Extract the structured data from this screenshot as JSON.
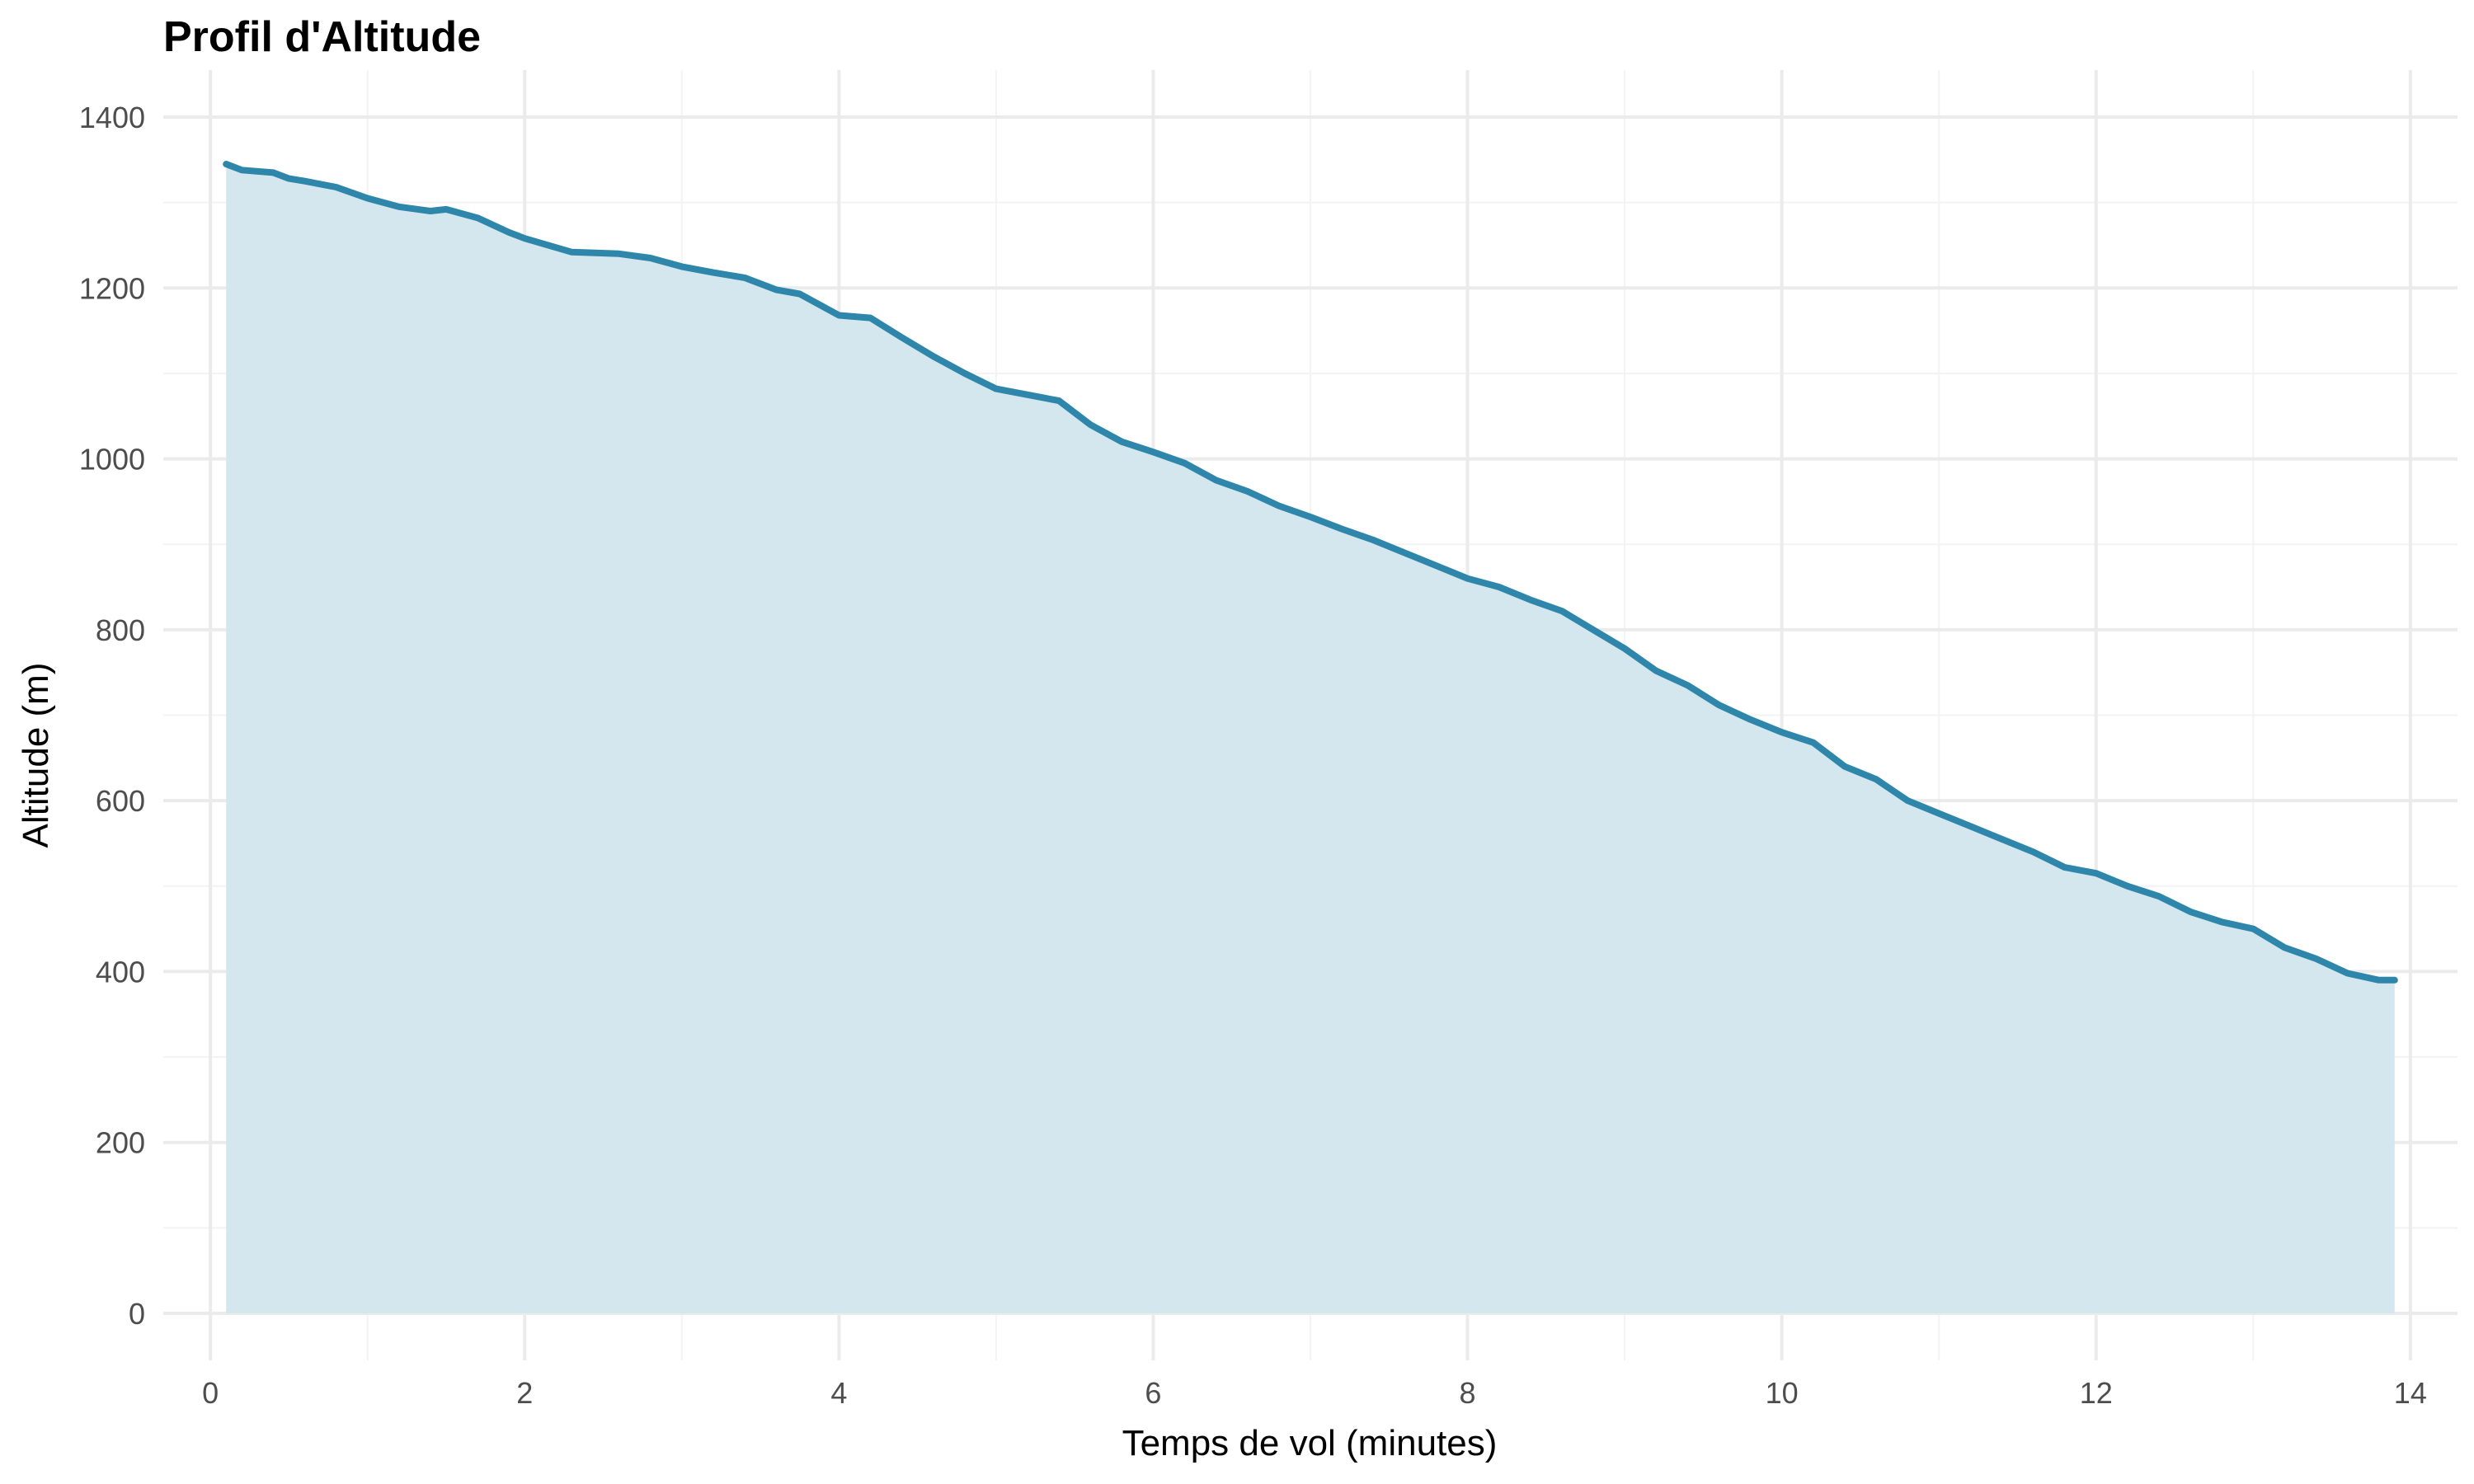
{
  "chart_data": {
    "type": "area",
    "title": "Profil d'Altitude",
    "xlabel": "Temps de vol (minutes)",
    "ylabel": "Altitude (m)",
    "xlim": [
      -0.3,
      14.3
    ],
    "ylim": [
      -55,
      1455
    ],
    "x_ticks": [
      0,
      2,
      4,
      6,
      8,
      10,
      12,
      14
    ],
    "y_ticks": [
      0,
      200,
      400,
      600,
      800,
      1000,
      1200,
      1400
    ],
    "grid": true,
    "legend": "none",
    "line_color": "#2e86ab",
    "fill_color": "#d4e7ef",
    "series": [
      {
        "x": [
          0.1,
          0.2,
          0.4,
          0.5,
          0.6,
          0.8,
          1.0,
          1.2,
          1.4,
          1.5,
          1.7,
          1.9,
          2.0,
          2.3,
          2.6,
          2.8,
          3.0,
          3.2,
          3.4,
          3.6,
          3.75,
          4.0,
          4.2,
          4.4,
          4.6,
          4.8,
          5.0,
          5.2,
          5.4,
          5.6,
          5.8,
          6.0,
          6.2,
          6.4,
          6.6,
          6.8,
          7.0,
          7.2,
          7.4,
          7.6,
          7.8,
          8.0,
          8.2,
          8.4,
          8.6,
          8.8,
          9.0,
          9.2,
          9.4,
          9.6,
          9.8,
          10.0,
          10.2,
          10.4,
          10.6,
          10.8,
          11.0,
          11.2,
          11.4,
          11.6,
          11.8,
          12.0,
          12.2,
          12.4,
          12.6,
          12.8,
          13.0,
          13.2,
          13.4,
          13.6,
          13.8,
          13.9
        ],
        "y": [
          1345,
          1338,
          1335,
          1328,
          1325,
          1318,
          1305,
          1295,
          1290,
          1292,
          1282,
          1265,
          1258,
          1242,
          1240,
          1235,
          1225,
          1218,
          1212,
          1198,
          1193,
          1168,
          1165,
          1142,
          1120,
          1100,
          1082,
          1075,
          1068,
          1040,
          1020,
          1008,
          995,
          975,
          962,
          945,
          932,
          918,
          905,
          890,
          875,
          860,
          850,
          835,
          822,
          800,
          778,
          752,
          735,
          712,
          695,
          680,
          668,
          640,
          625,
          600,
          585,
          570,
          555,
          540,
          522,
          515,
          500,
          488,
          470,
          458,
          450,
          428,
          415,
          398,
          390,
          390
        ]
      }
    ]
  }
}
